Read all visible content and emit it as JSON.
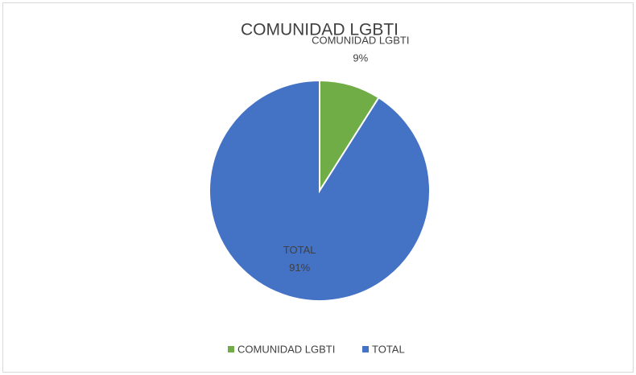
{
  "chart_data": {
    "type": "pie",
    "title": "COMUNIDAD LGBTI",
    "categories": [
      "COMUNIDAD LGBTI",
      "TOTAL"
    ],
    "values": [
      9,
      91
    ],
    "value_labels": [
      "9%",
      "91%"
    ],
    "colors": [
      "#70ad47",
      "#4472c4"
    ],
    "legend": "bottom"
  }
}
